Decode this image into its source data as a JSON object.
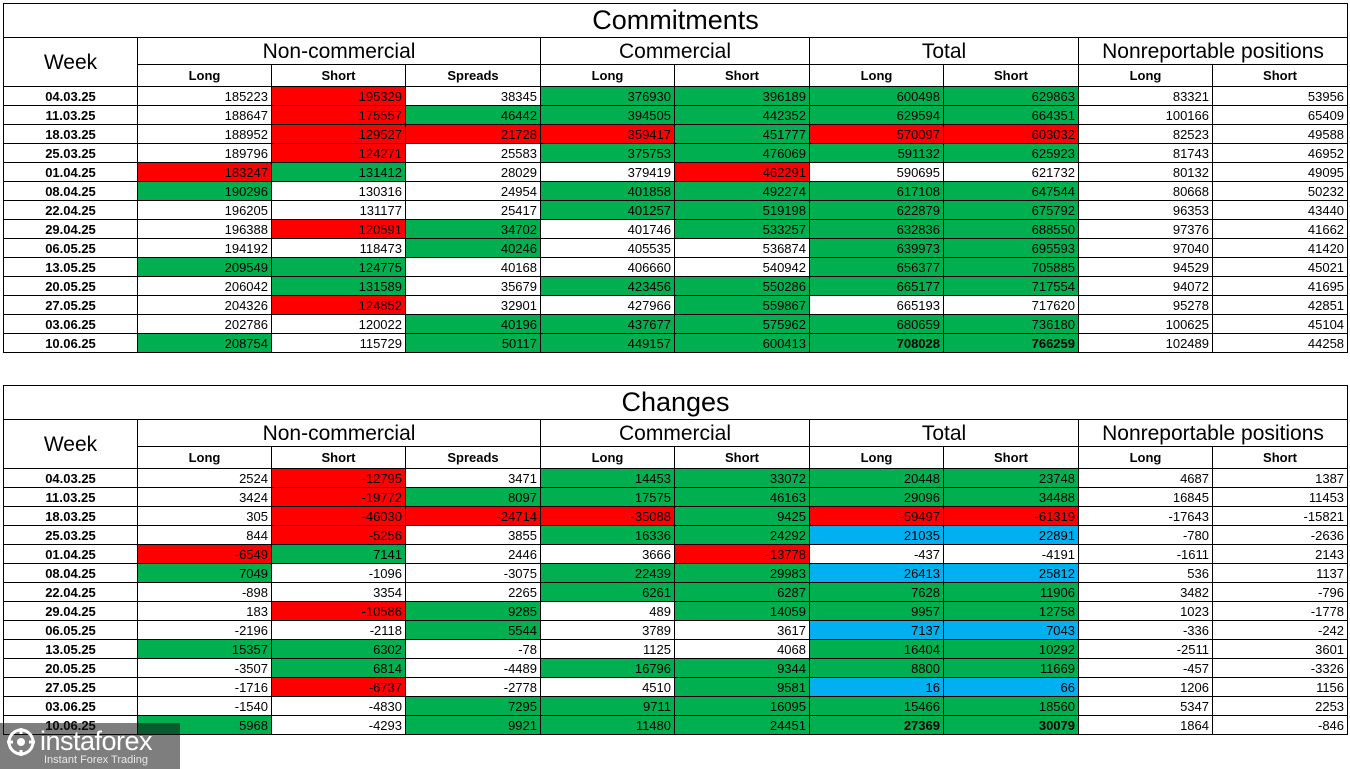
{
  "commitments": {
    "title": "Commitments",
    "week_label": "Week",
    "groups": [
      "Non-commercial",
      "Commercial",
      "Total",
      "Nonreportable positions"
    ],
    "subheaders": [
      "Long",
      "Short",
      "Spreads",
      "Long",
      "Short",
      "Long",
      "Short",
      "Long",
      "Short"
    ],
    "rows": [
      {
        "week": "04.03.25",
        "values": [
          "185223",
          "195329",
          "38345",
          "376930",
          "396189",
          "600498",
          "629863",
          "83321",
          "53956"
        ],
        "colors": [
          "",
          "r",
          "",
          "g",
          "g",
          "g",
          "g",
          "",
          ""
        ]
      },
      {
        "week": "11.03.25",
        "values": [
          "188647",
          "175557",
          "46442",
          "394505",
          "442352",
          "629594",
          "664351",
          "100166",
          "65409"
        ],
        "colors": [
          "",
          "r",
          "g",
          "g",
          "g",
          "g",
          "g",
          "",
          ""
        ]
      },
      {
        "week": "18.03.25",
        "values": [
          "188952",
          "129527",
          "21728",
          "359417",
          "451777",
          "570097",
          "603032",
          "82523",
          "49588"
        ],
        "colors": [
          "",
          "r",
          "r",
          "r",
          "g",
          "r",
          "r",
          "",
          ""
        ]
      },
      {
        "week": "25.03.25",
        "values": [
          "189796",
          "124271",
          "25583",
          "375753",
          "476069",
          "591132",
          "625923",
          "81743",
          "46952"
        ],
        "colors": [
          "",
          "r",
          "",
          "g",
          "g",
          "g",
          "g",
          "",
          ""
        ]
      },
      {
        "week": "01.04.25",
        "values": [
          "183247",
          "131412",
          "28029",
          "379419",
          "462291",
          "590695",
          "621732",
          "80132",
          "49095"
        ],
        "colors": [
          "r",
          "g",
          "",
          "",
          "r",
          "",
          "",
          "",
          ""
        ]
      },
      {
        "week": "08.04.25",
        "values": [
          "190296",
          "130316",
          "24954",
          "401858",
          "492274",
          "617108",
          "647544",
          "80668",
          "50232"
        ],
        "colors": [
          "g",
          "",
          "",
          "g",
          "g",
          "g",
          "g",
          "",
          ""
        ]
      },
      {
        "week": "22.04.25",
        "values": [
          "196205",
          "131177",
          "25417",
          "401257",
          "519198",
          "622879",
          "675792",
          "96353",
          "43440"
        ],
        "colors": [
          "",
          "",
          "",
          "g",
          "g",
          "g",
          "g",
          "",
          ""
        ]
      },
      {
        "week": "29.04.25",
        "values": [
          "196388",
          "120591",
          "34702",
          "401746",
          "533257",
          "632836",
          "688550",
          "97376",
          "41662"
        ],
        "colors": [
          "",
          "r",
          "g",
          "",
          "g",
          "g",
          "g",
          "",
          ""
        ]
      },
      {
        "week": "06.05.25",
        "values": [
          "194192",
          "118473",
          "40246",
          "405535",
          "536874",
          "639973",
          "695593",
          "97040",
          "41420"
        ],
        "colors": [
          "",
          "",
          "g",
          "",
          "",
          "g",
          "g",
          "",
          ""
        ]
      },
      {
        "week": "13.05.25",
        "values": [
          "209549",
          "124775",
          "40168",
          "406660",
          "540942",
          "656377",
          "705885",
          "94529",
          "45021"
        ],
        "colors": [
          "g",
          "g",
          "",
          "",
          "",
          "g",
          "g",
          "",
          ""
        ]
      },
      {
        "week": "20.05.25",
        "values": [
          "206042",
          "131589",
          "35679",
          "423456",
          "550286",
          "665177",
          "717554",
          "94072",
          "41695"
        ],
        "colors": [
          "",
          "g",
          "",
          "g",
          "g",
          "g",
          "g",
          "",
          ""
        ]
      },
      {
        "week": "27.05.25",
        "values": [
          "204326",
          "124852",
          "32901",
          "427966",
          "559867",
          "665193",
          "717620",
          "95278",
          "42851"
        ],
        "colors": [
          "",
          "r",
          "",
          "",
          "g",
          "",
          "",
          "",
          ""
        ]
      },
      {
        "week": "03.06.25",
        "values": [
          "202786",
          "120022",
          "40196",
          "437677",
          "575962",
          "680659",
          "736180",
          "100625",
          "45104"
        ],
        "colors": [
          "",
          "",
          "g",
          "g",
          "g",
          "g",
          "g",
          "",
          ""
        ]
      },
      {
        "week": "10.06.25",
        "values": [
          "208754",
          "115729",
          "50117",
          "449157",
          "600413",
          "708028",
          "766259",
          "102489",
          "44258"
        ],
        "colors": [
          "g",
          "",
          "g",
          "g",
          "g",
          "g",
          "g",
          "",
          ""
        ],
        "bold_total": true
      }
    ]
  },
  "changes": {
    "title": "Changes",
    "week_label": "Week",
    "groups": [
      "Non-commercial",
      "Commercial",
      "Total",
      "Nonreportable positions"
    ],
    "subheaders": [
      "Long",
      "Short",
      "Spreads",
      "Long",
      "Short",
      "Long",
      "Short",
      "Long",
      "Short"
    ],
    "rows": [
      {
        "week": "04.03.25",
        "values": [
          "2524",
          "-12795",
          "3471",
          "14453",
          "33072",
          "20448",
          "23748",
          "4687",
          "1387"
        ],
        "colors": [
          "",
          "r",
          "",
          "g",
          "g",
          "g",
          "g",
          "",
          ""
        ]
      },
      {
        "week": "11.03.25",
        "values": [
          "3424",
          "-19772",
          "8097",
          "17575",
          "46163",
          "29096",
          "34488",
          "16845",
          "11453"
        ],
        "colors": [
          "",
          "r",
          "g",
          "g",
          "g",
          "g",
          "g",
          "",
          ""
        ]
      },
      {
        "week": "18.03.25",
        "values": [
          "305",
          "-46030",
          "-24714",
          "-35088",
          "9425",
          "-59497",
          "-61319",
          "-17643",
          "-15821"
        ],
        "colors": [
          "",
          "r",
          "r",
          "r",
          "g",
          "r",
          "r",
          "",
          ""
        ]
      },
      {
        "week": "25.03.25",
        "values": [
          "844",
          "-5256",
          "3855",
          "16336",
          "24292",
          "21035",
          "22891",
          "-780",
          "-2636"
        ],
        "colors": [
          "",
          "r",
          "",
          "g",
          "g",
          "b",
          "b",
          "",
          ""
        ]
      },
      {
        "week": "01.04.25",
        "values": [
          "-6549",
          "7141",
          "2446",
          "3666",
          "-13778",
          "-437",
          "-4191",
          "-1611",
          "2143"
        ],
        "colors": [
          "r",
          "g",
          "",
          "",
          "r",
          "",
          "",
          "",
          ""
        ]
      },
      {
        "week": "08.04.25",
        "values": [
          "7049",
          "-1096",
          "-3075",
          "22439",
          "29983",
          "26413",
          "25812",
          "536",
          "1137"
        ],
        "colors": [
          "g",
          "",
          "",
          "g",
          "g",
          "b",
          "b",
          "",
          ""
        ]
      },
      {
        "week": "22.04.25",
        "values": [
          "-898",
          "3354",
          "2265",
          "6261",
          "6287",
          "7628",
          "11906",
          "3482",
          "-796"
        ],
        "colors": [
          "",
          "",
          "",
          "g",
          "g",
          "g",
          "g",
          "",
          ""
        ]
      },
      {
        "week": "29.04.25",
        "values": [
          "183",
          "-10586",
          "9285",
          "489",
          "14059",
          "9957",
          "12758",
          "1023",
          "-1778"
        ],
        "colors": [
          "",
          "r",
          "g",
          "",
          "g",
          "g",
          "g",
          "",
          ""
        ]
      },
      {
        "week": "06.05.25",
        "values": [
          "-2196",
          "-2118",
          "5544",
          "3789",
          "3617",
          "7137",
          "7043",
          "-336",
          "-242"
        ],
        "colors": [
          "",
          "",
          "g",
          "",
          "",
          "b",
          "b",
          "",
          ""
        ]
      },
      {
        "week": "13.05.25",
        "values": [
          "15357",
          "6302",
          "-78",
          "1125",
          "4068",
          "16404",
          "10292",
          "-2511",
          "3601"
        ],
        "colors": [
          "g",
          "g",
          "",
          "",
          "",
          "g",
          "g",
          "",
          ""
        ]
      },
      {
        "week": "20.05.25",
        "values": [
          "-3507",
          "6814",
          "-4489",
          "16796",
          "9344",
          "8800",
          "11669",
          "-457",
          "-3326"
        ],
        "colors": [
          "",
          "g",
          "",
          "g",
          "g",
          "g",
          "g",
          "",
          ""
        ]
      },
      {
        "week": "27.05.25",
        "values": [
          "-1716",
          "-6737",
          "-2778",
          "4510",
          "9581",
          "16",
          "66",
          "1206",
          "1156"
        ],
        "colors": [
          "",
          "r",
          "",
          "",
          "g",
          "b",
          "b",
          "",
          ""
        ]
      },
      {
        "week": "03.06.25",
        "values": [
          "-1540",
          "-4830",
          "7295",
          "9711",
          "16095",
          "15466",
          "18560",
          "5347",
          "2253"
        ],
        "colors": [
          "",
          "",
          "g",
          "g",
          "g",
          "g",
          "g",
          "",
          ""
        ]
      },
      {
        "week": "10.06.25",
        "values": [
          "5968",
          "-4293",
          "9921",
          "11480",
          "24451",
          "27369",
          "30079",
          "1864",
          "-846"
        ],
        "colors": [
          "g",
          "",
          "g",
          "g",
          "g",
          "g",
          "g",
          "",
          ""
        ],
        "bold_total": true
      }
    ]
  },
  "watermark": {
    "brand": "instaforex",
    "tagline": "Instant Forex Trading"
  },
  "palette": {
    "g": "#00b050",
    "r": "#ff0000",
    "b": "#00b0f0"
  }
}
